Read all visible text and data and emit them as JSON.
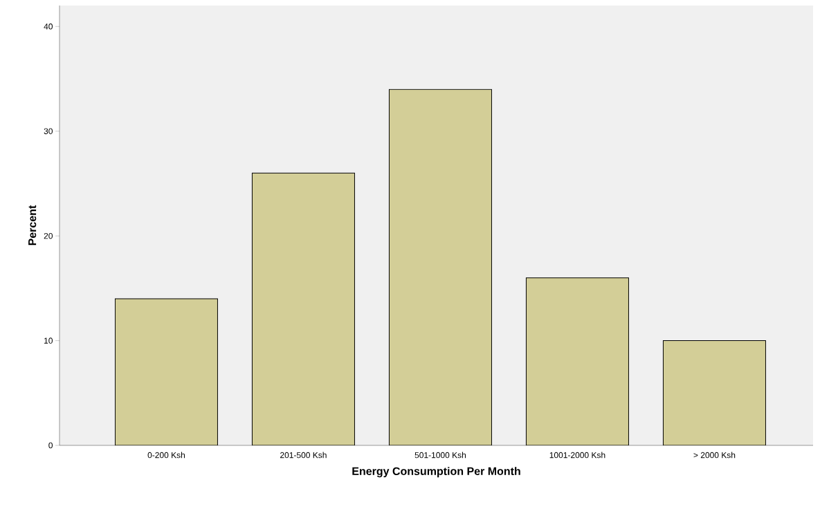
{
  "chart_data": {
    "type": "bar",
    "xlabel": "Energy Consumption Per Month",
    "ylabel": "Percent",
    "categories": [
      "0-200 Ksh",
      "201-500 Ksh",
      "501-1000 Ksh",
      "1001-2000 Ksh",
      "> 2000 Ksh"
    ],
    "values": [
      14,
      26,
      34,
      16,
      10
    ],
    "color": "#d3ce97",
    "ylim": [
      0,
      42
    ],
    "yticks": [
      0,
      10,
      20,
      30,
      40
    ]
  }
}
